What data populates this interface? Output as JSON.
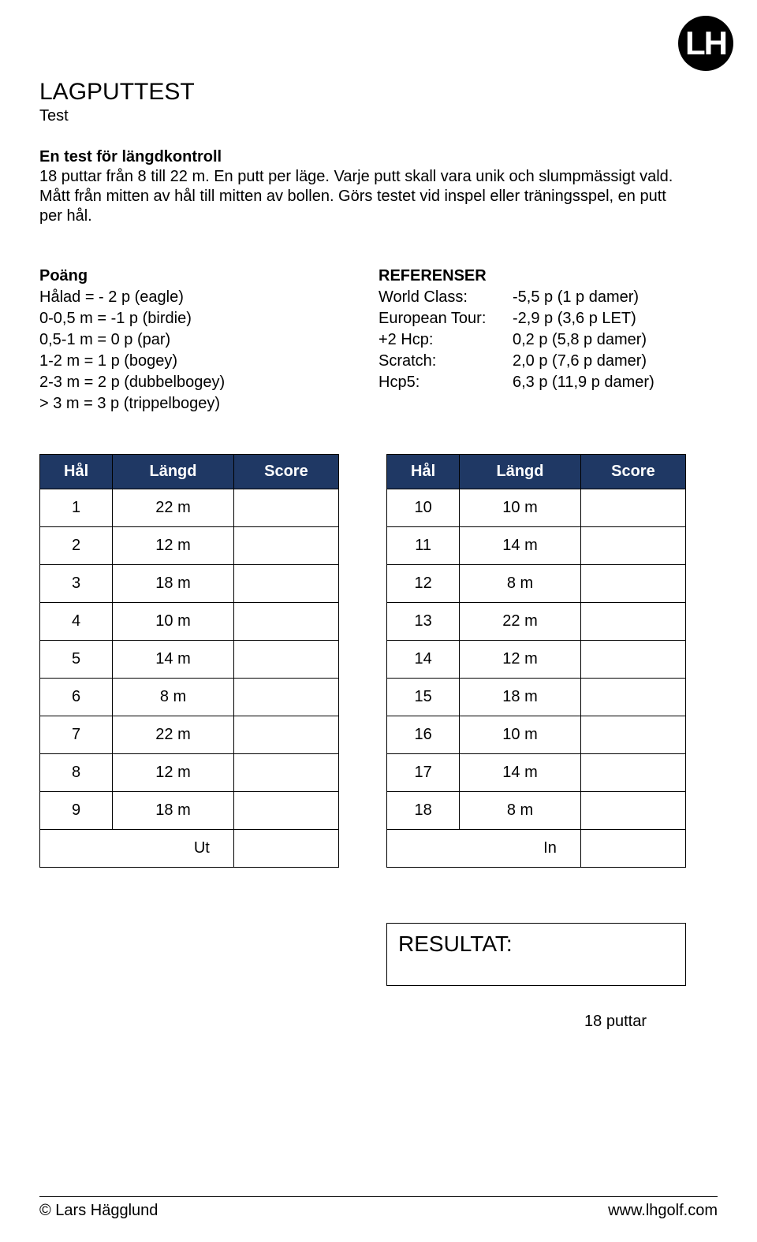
{
  "logo": {
    "text": "LH"
  },
  "title": "LAGPUTTEST",
  "subtitle": "Test",
  "intro": {
    "bold": "En test för längdkontroll",
    "lines": [
      "18 puttar från 8 till 22 m. En putt per läge. Varje putt skall vara unik och slumpmässigt vald.",
      "Mått från mitten av hål till mitten av bollen. Görs testet vid inspel eller träningsspel, en putt",
      "per hål."
    ]
  },
  "poang": {
    "title": "Poäng",
    "rows": [
      "Hålad = - 2 p (eagle)",
      "0-0,5 m = -1 p (birdie)",
      "0,5-1 m = 0 p (par)",
      "1-2 m = 1 p (bogey)",
      "2-3 m = 2 p (dubbelbogey)",
      "> 3 m = 3 p (trippelbogey)"
    ]
  },
  "referenser": {
    "title": "REFERENSER",
    "rows": [
      {
        "label": "World Class:",
        "value": "-5,5 p (1 p damer)"
      },
      {
        "label": "European Tour:",
        "value": "-2,9 p (3,6 p LET)"
      },
      {
        "label": "+2 Hcp:",
        "value": "0,2 p (5,8 p damer)"
      },
      {
        "label": "Scratch:",
        "value": "2,0 p (7,6 p damer)"
      },
      {
        "label": "Hcp5:",
        "value": "6,3 p (11,9 p damer)"
      }
    ]
  },
  "tableHeaders": {
    "hal": "Hål",
    "langd": "Längd",
    "score": "Score"
  },
  "tableLeft": {
    "rows": [
      {
        "hal": "1",
        "langd": "22 m"
      },
      {
        "hal": "2",
        "langd": "12 m"
      },
      {
        "hal": "3",
        "langd": "18 m"
      },
      {
        "hal": "4",
        "langd": "10 m"
      },
      {
        "hal": "5",
        "langd": "14 m"
      },
      {
        "hal": "6",
        "langd": "8 m"
      },
      {
        "hal": "7",
        "langd": "22 m"
      },
      {
        "hal": "8",
        "langd": "12 m"
      },
      {
        "hal": "9",
        "langd": "18 m"
      }
    ],
    "footer": "Ut"
  },
  "tableRight": {
    "rows": [
      {
        "hal": "10",
        "langd": "10 m"
      },
      {
        "hal": "11",
        "langd": "14 m"
      },
      {
        "hal": "12",
        "langd": "8 m"
      },
      {
        "hal": "13",
        "langd": "22 m"
      },
      {
        "hal": "14",
        "langd": "12 m"
      },
      {
        "hal": "15",
        "langd": "18 m"
      },
      {
        "hal": "16",
        "langd": "10 m"
      },
      {
        "hal": "17",
        "langd": "14 m"
      },
      {
        "hal": "18",
        "langd": "8 m"
      }
    ],
    "footer": "In"
  },
  "result": {
    "label": "RESULTAT:"
  },
  "puttCount": "18 puttar",
  "footer": {
    "left": "© Lars Hägglund",
    "right": "www.lhgolf.com"
  },
  "colors": {
    "headerBg": "#1f3864",
    "headerText": "#ffffff",
    "pageBg": "#ffffff",
    "text": "#000000",
    "border": "#000000"
  }
}
